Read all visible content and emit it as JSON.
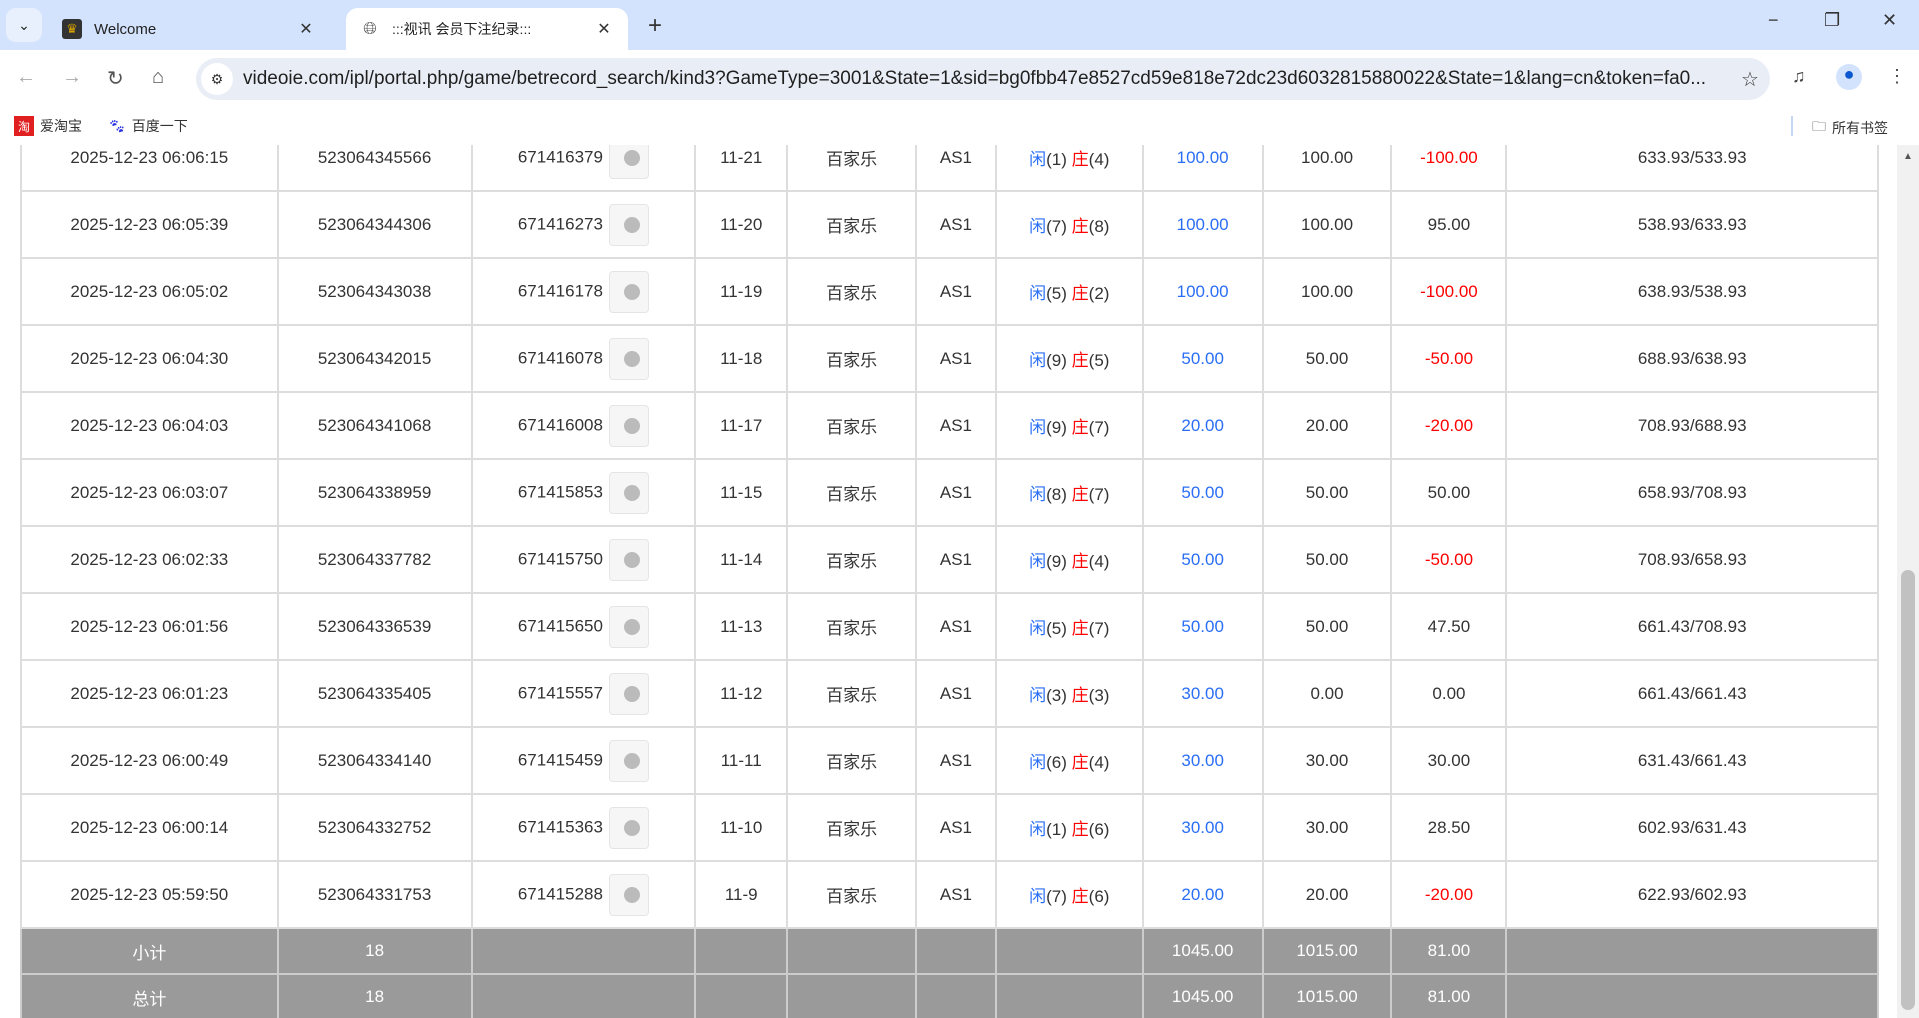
{
  "browser": {
    "tabs": [
      {
        "title": "Welcome",
        "active": false,
        "icon": "site-logo-icon"
      },
      {
        "title": ":::视讯 会员下注纪录:::",
        "active": true,
        "icon": "globe-icon"
      }
    ],
    "url": "videoie.com/ipl/portal.php/game/betrecord_search/kind3?GameType=3001&State=1&sid=bg0fbb47e8527cd59e818e72dc23d6032815880022&State=1&lang=cn&token=fa0...",
    "bookmarks": [
      {
        "label": "爱淘宝",
        "icon": "taobao-icon"
      },
      {
        "label": "百度一下",
        "icon": "baidu-paw-icon"
      }
    ],
    "all_bookmarks": "所有书签"
  },
  "colors": {
    "player": "#2a6ef5",
    "banker": "#ff0000",
    "subtotal_bg": "#9a9a9a"
  },
  "table": {
    "rows": [
      {
        "time": "2025-12-23 06:06:15",
        "order": "523064345566",
        "round": "671416379",
        "shoe": "11-21",
        "game": "百家乐",
        "table": "AS1",
        "p": "闲",
        "pv": "(1)",
        "b": "庄",
        "bv": "(4)",
        "bet": "100.00",
        "valid": "100.00",
        "win": "-100.00",
        "balance": "633.93/533.93"
      },
      {
        "time": "2025-12-23 06:05:39",
        "order": "523064344306",
        "round": "671416273",
        "shoe": "11-20",
        "game": "百家乐",
        "table": "AS1",
        "p": "闲",
        "pv": "(7)",
        "b": "庄",
        "bv": "(8)",
        "bet": "100.00",
        "valid": "100.00",
        "win": "95.00",
        "balance": "538.93/633.93"
      },
      {
        "time": "2025-12-23 06:05:02",
        "order": "523064343038",
        "round": "671416178",
        "shoe": "11-19",
        "game": "百家乐",
        "table": "AS1",
        "p": "闲",
        "pv": "(5)",
        "b": "庄",
        "bv": "(2)",
        "bet": "100.00",
        "valid": "100.00",
        "win": "-100.00",
        "balance": "638.93/538.93"
      },
      {
        "time": "2025-12-23 06:04:30",
        "order": "523064342015",
        "round": "671416078",
        "shoe": "11-18",
        "game": "百家乐",
        "table": "AS1",
        "p": "闲",
        "pv": "(9)",
        "b": "庄",
        "bv": "(5)",
        "bet": "50.00",
        "valid": "50.00",
        "win": "-50.00",
        "balance": "688.93/638.93"
      },
      {
        "time": "2025-12-23 06:04:03",
        "order": "523064341068",
        "round": "671416008",
        "shoe": "11-17",
        "game": "百家乐",
        "table": "AS1",
        "p": "闲",
        "pv": "(9)",
        "b": "庄",
        "bv": "(7)",
        "bet": "20.00",
        "valid": "20.00",
        "win": "-20.00",
        "balance": "708.93/688.93"
      },
      {
        "time": "2025-12-23 06:03:07",
        "order": "523064338959",
        "round": "671415853",
        "shoe": "11-15",
        "game": "百家乐",
        "table": "AS1",
        "p": "闲",
        "pv": "(8)",
        "b": "庄",
        "bv": "(7)",
        "bet": "50.00",
        "valid": "50.00",
        "win": "50.00",
        "balance": "658.93/708.93"
      },
      {
        "time": "2025-12-23 06:02:33",
        "order": "523064337782",
        "round": "671415750",
        "shoe": "11-14",
        "game": "百家乐",
        "table": "AS1",
        "p": "闲",
        "pv": "(9)",
        "b": "庄",
        "bv": "(4)",
        "bet": "50.00",
        "valid": "50.00",
        "win": "-50.00",
        "balance": "708.93/658.93"
      },
      {
        "time": "2025-12-23 06:01:56",
        "order": "523064336539",
        "round": "671415650",
        "shoe": "11-13",
        "game": "百家乐",
        "table": "AS1",
        "p": "闲",
        "pv": "(5)",
        "b": "庄",
        "bv": "(7)",
        "bet": "50.00",
        "valid": "50.00",
        "win": "47.50",
        "balance": "661.43/708.93"
      },
      {
        "time": "2025-12-23 06:01:23",
        "order": "523064335405",
        "round": "671415557",
        "shoe": "11-12",
        "game": "百家乐",
        "table": "AS1",
        "p": "闲",
        "pv": "(3)",
        "b": "庄",
        "bv": "(3)",
        "bet": "30.00",
        "valid": "0.00",
        "win": "0.00",
        "balance": "661.43/661.43"
      },
      {
        "time": "2025-12-23 06:00:49",
        "order": "523064334140",
        "round": "671415459",
        "shoe": "11-11",
        "game": "百家乐",
        "table": "AS1",
        "p": "闲",
        "pv": "(6)",
        "b": "庄",
        "bv": "(4)",
        "bet": "30.00",
        "valid": "30.00",
        "win": "30.00",
        "balance": "631.43/661.43"
      },
      {
        "time": "2025-12-23 06:00:14",
        "order": "523064332752",
        "round": "671415363",
        "shoe": "11-10",
        "game": "百家乐",
        "table": "AS1",
        "p": "闲",
        "pv": "(1)",
        "b": "庄",
        "bv": "(6)",
        "bet": "30.00",
        "valid": "30.00",
        "win": "28.50",
        "balance": "602.93/631.43"
      },
      {
        "time": "2025-12-23 05:59:50",
        "order": "523064331753",
        "round": "671415288",
        "shoe": "11-9",
        "game": "百家乐",
        "table": "AS1",
        "p": "闲",
        "pv": "(7)",
        "b": "庄",
        "bv": "(6)",
        "bet": "20.00",
        "valid": "20.00",
        "win": "-20.00",
        "balance": "622.93/602.93"
      }
    ],
    "summary": [
      {
        "label": "小计",
        "count": "18",
        "bet": "1045.00",
        "valid": "1015.00",
        "win": "81.00"
      },
      {
        "label": "总计",
        "count": "18",
        "bet": "1045.00",
        "valid": "1015.00",
        "win": "81.00"
      }
    ]
  }
}
